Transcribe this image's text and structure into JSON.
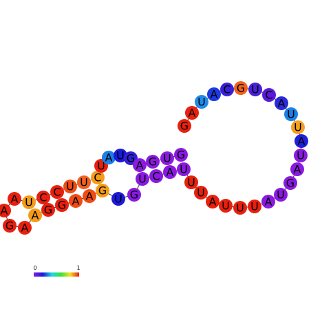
{
  "nodes": [
    {
      "label": "G",
      "color": "#e8200e"
    },
    {
      "label": "A",
      "color": "#e8200e"
    },
    {
      "label": "U",
      "color": "#1f8be8"
    },
    {
      "label": "A",
      "color": "#1c3ae0"
    },
    {
      "label": "C",
      "color": "#3a20d8"
    },
    {
      "label": "G",
      "color": "#f06020"
    },
    {
      "label": "U",
      "color": "#4a20d8"
    },
    {
      "label": "C",
      "color": "#5a1ad8"
    },
    {
      "label": "A",
      "color": "#2a2ad8"
    },
    {
      "label": "U",
      "color": "#1a80e8"
    },
    {
      "label": "U",
      "color": "#f5a020"
    },
    {
      "label": "A",
      "color": "#2020d8"
    },
    {
      "label": "U",
      "color": "#8a1ae0"
    },
    {
      "label": "A",
      "color": "#8a1ae0"
    },
    {
      "label": "G",
      "color": "#8a1ae0"
    },
    {
      "label": "U",
      "color": "#8a1ae0"
    },
    {
      "label": "A",
      "color": "#8a1ae0"
    },
    {
      "label": "U",
      "color": "#e8200e"
    },
    {
      "label": "U",
      "color": "#e8200e"
    },
    {
      "label": "U",
      "color": "#e8200e"
    },
    {
      "label": "A",
      "color": "#e8200e"
    },
    {
      "label": "U",
      "color": "#e8200e"
    },
    {
      "label": "U",
      "color": "#e8200e"
    },
    {
      "label": "U",
      "color": "#8a1ae0"
    },
    {
      "label": "A",
      "color": "#8a1ae0"
    },
    {
      "label": "C",
      "color": "#8a1ae0"
    },
    {
      "label": "U",
      "color": "#8a1ae0"
    },
    {
      "label": "G",
      "color": "#8a1ae0"
    },
    {
      "label": "U",
      "color": "#1a1ad8"
    },
    {
      "label": "G",
      "color": "#f39c1a"
    },
    {
      "label": "A",
      "color": "#f04a15"
    },
    {
      "label": "A",
      "color": "#f04a15"
    },
    {
      "label": "G",
      "color": "#e8200e"
    },
    {
      "label": "G",
      "color": "#e8200e"
    },
    {
      "label": "A",
      "color": "#f39c1a"
    },
    {
      "label": "A",
      "color": "#e8200e"
    },
    {
      "label": "G",
      "color": "#e8200e"
    },
    {
      "label": "A",
      "color": "#e8200e"
    },
    {
      "label": "A",
      "color": "#e8200e"
    },
    {
      "label": "U",
      "color": "#f39c1a"
    },
    {
      "label": "C",
      "color": "#e8200e"
    },
    {
      "label": "C",
      "color": "#e8200e"
    },
    {
      "label": "U",
      "color": "#f04a15"
    },
    {
      "label": "U",
      "color": "#f06020"
    },
    {
      "label": "C",
      "color": "#f39c1a"
    },
    {
      "label": "U",
      "color": "#e8200e"
    },
    {
      "label": "A",
      "color": "#1a7fe8"
    },
    {
      "label": "U",
      "color": "#1a1ad8"
    },
    {
      "label": "G",
      "color": "#3020d8"
    },
    {
      "label": "A",
      "color": "#8a1ae0"
    },
    {
      "label": "G",
      "color": "#8a1ae0"
    },
    {
      "label": "U",
      "color": "#8a1ae0"
    },
    {
      "label": "G",
      "color": "#8a1ae0"
    }
  ],
  "colorbar": {
    "min": 0,
    "max": 1
  }
}
